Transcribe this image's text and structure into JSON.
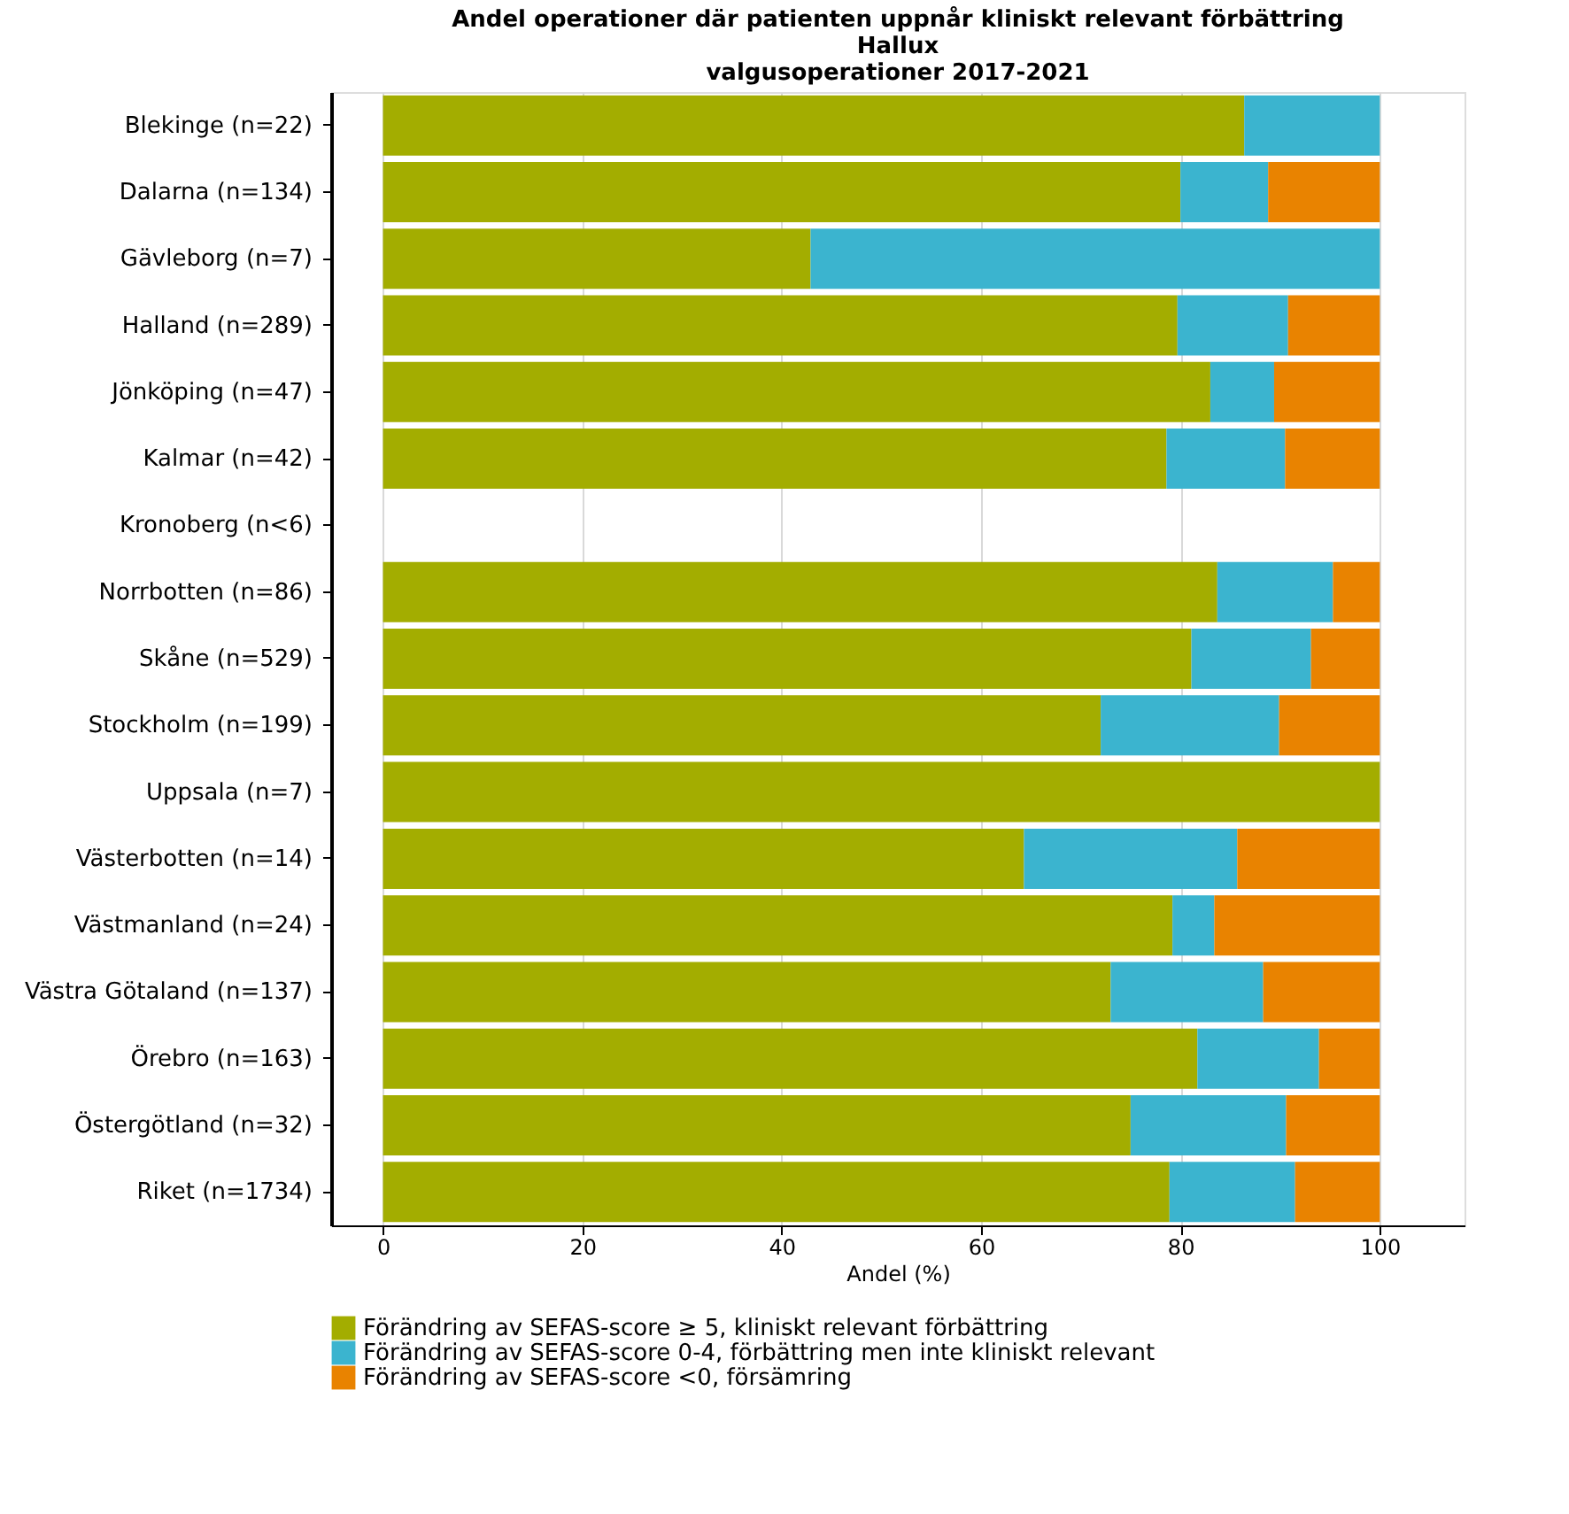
{
  "chart_data": {
    "type": "bar",
    "orientation": "horizontal",
    "stacked": true,
    "title": "Andel operationer där patienten uppnår kliniskt relevant förbättring\nHallux\nvalgusoperationer 2017-2021",
    "xlabel": "Andel (%)",
    "categories": [
      "Blekinge   (n=22)",
      "Dalarna   (n=134)",
      "Gävleborg   (n=7)",
      "Halland   (n=289)",
      "Jönköping   (n=47)",
      "Kalmar   (n=42)",
      "Kronoberg   (n<6)",
      "Norrbotten   (n=86)",
      "Skåne   (n=529)",
      "Stockholm   (n=199)",
      "Uppsala   (n=7)",
      "Västerbotten   (n=14)",
      "Västmanland   (n=24)",
      "Västra Götaland   (n=137)",
      "Örebro   (n=163)",
      "Östergötland   (n=32)",
      "Riket   (n=1734)"
    ],
    "series": [
      {
        "name": "Förändring av SEFAS-score ≥ 5, kliniskt relevant förbättring",
        "color": "#a3ad00",
        "values": [
          86.4,
          80.0,
          42.9,
          79.7,
          83.0,
          78.6,
          null,
          83.7,
          81.1,
          72.0,
          100,
          64.3,
          79.2,
          73.0,
          81.7,
          75.0,
          78.9
        ]
      },
      {
        "name": "Förändring av SEFAS-score 0-4, förbättring men inte kliniskt relevant",
        "color": "#3bb4cf",
        "values": [
          13.6,
          8.8,
          57.1,
          11.1,
          6.4,
          11.9,
          null,
          11.6,
          12.0,
          17.9,
          0,
          21.4,
          4.2,
          15.3,
          12.2,
          15.6,
          12.6
        ]
      },
      {
        "name": "Förändring av SEFAS-score <0, försämring",
        "color": "#e98300",
        "values": [
          0,
          11.2,
          0,
          9.2,
          10.6,
          9.5,
          null,
          4.7,
          6.9,
          10.1,
          0,
          14.3,
          16.6,
          11.7,
          6.1,
          9.4,
          8.5
        ]
      }
    ],
    "xlim": [
      -5.2,
      108.5
    ],
    "xticks": [
      0,
      20,
      40,
      60,
      80,
      100
    ],
    "grid": "x",
    "legend": "bottom"
  }
}
